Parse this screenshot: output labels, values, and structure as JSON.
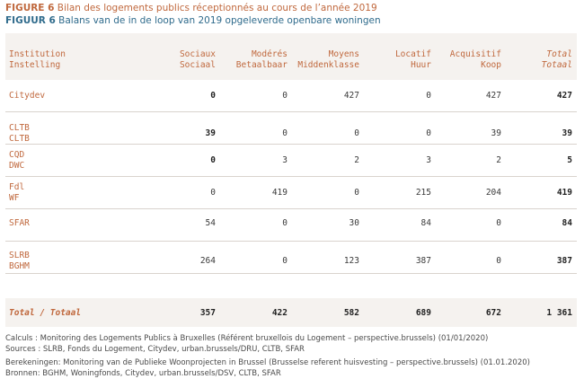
{
  "figure": {
    "fr_label": "FIGURE 6",
    "fr_title": "Bilan des logements publics réceptionnés au cours de l’année 2019",
    "nl_label": "FIGUUR 6",
    "nl_title": "Balans van de in de loop van 2019 opgeleverde openbare woningen"
  },
  "columns": [
    {
      "fr": "Institution",
      "nl": "Instelling"
    },
    {
      "fr": "Sociaux",
      "nl": "Sociaal"
    },
    {
      "fr": "Modérés",
      "nl": "Betaalbaar"
    },
    {
      "fr": "Moyens",
      "nl": "Middenklasse"
    },
    {
      "fr": "Locatif",
      "nl": "Huur"
    },
    {
      "fr": "Acquisitif",
      "nl": "Koop"
    },
    {
      "fr": "Total",
      "nl": "Totaal"
    }
  ],
  "rows": [
    {
      "name1": "Citydev",
      "name2": "",
      "values": [
        "0",
        "0",
        "427",
        "0",
        "427",
        "427"
      ]
    },
    {
      "name1": "CLTB",
      "name2": "CLTB",
      "values": [
        "39",
        "0",
        "0",
        "0",
        "39",
        "39"
      ]
    },
    {
      "name1": "CQD",
      "name2": "DWC",
      "values": [
        "0",
        "3",
        "2",
        "3",
        "2",
        "5"
      ]
    },
    {
      "name1": "Fdl",
      "name2": "WF",
      "values": [
        "0",
        "419",
        "0",
        "215",
        "204",
        "419"
      ]
    },
    {
      "name1": "SFAR",
      "name2": "",
      "values": [
        "54",
        "0",
        "30",
        "84",
        "0",
        "84"
      ]
    },
    {
      "name1": "SLRB",
      "name2": "BGHM",
      "values": [
        "264",
        "0",
        "123",
        "387",
        "0",
        "387"
      ]
    }
  ],
  "total": {
    "label": "Total / Totaal",
    "values": [
      "357",
      "422",
      "582",
      "689",
      "672",
      "1 361"
    ]
  },
  "footer": {
    "fr_calc": "Calculs : Monitoring des Logements Publics à Bruxelles (Référent bruxellois du Logement – perspective.brussels) (01/01/2020)",
    "fr_src": "Sources : SLRB, Fonds du Logement, Citydev, urban.brussels/DRU, CLTB, SFAR",
    "nl_calc": "Berekeningen: Monitoring van de Publieke Woonprojecten in Brussel (Brusselse referent huisvesting – perspective.brussels) (01.01.2020)",
    "nl_src": "Bronnen: BGHM, Woningfonds, Citydev, urban.brussels/DSV, CLTB, SFAR"
  }
}
